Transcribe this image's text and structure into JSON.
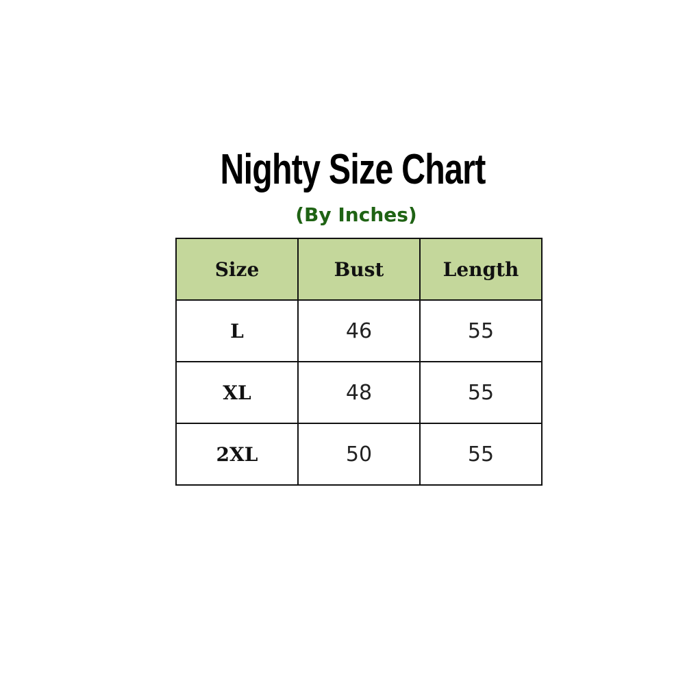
{
  "title": "Nighty Size Chart",
  "subtitle": "(By Inches)",
  "colors": {
    "header_bg": "#c4d79b",
    "subtitle": "#1f6314"
  },
  "table": {
    "headers": [
      "Size",
      "Bust",
      "Length"
    ],
    "rows": [
      [
        "L",
        "46",
        "55"
      ],
      [
        "XL",
        "48",
        "55"
      ],
      [
        "2XL",
        "50",
        "55"
      ]
    ]
  }
}
